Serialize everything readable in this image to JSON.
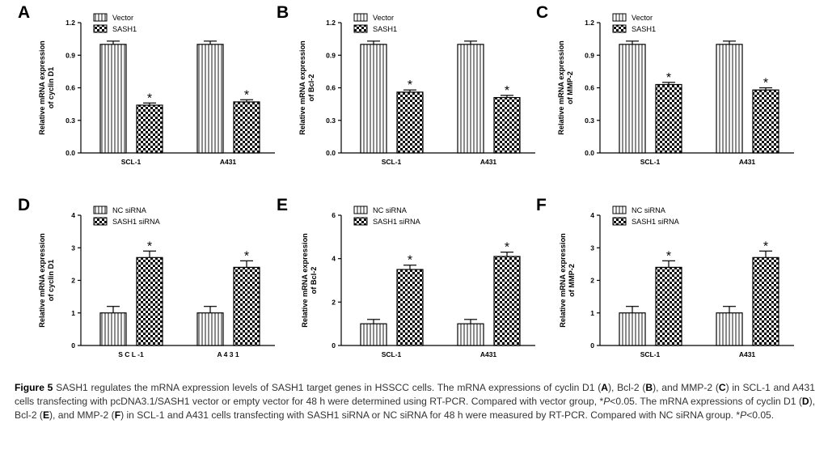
{
  "figure": {
    "colors": {
      "bar1": "#ffffff",
      "bar2": "#ffffff",
      "ink": "#000000"
    },
    "panels": [
      {
        "letter": "A",
        "ylabel": [
          "Relative mRNA expression",
          "of cyclin D1"
        ],
        "legend": [
          "Vector",
          "SASH1"
        ],
        "yticks": [
          "0.0",
          "0.3",
          "0.6",
          "0.9",
          "1.2"
        ],
        "categories": [
          "SCL-1",
          "A431"
        ]
      },
      {
        "letter": "B",
        "ylabel": [
          "Relative mRNA expression",
          "of Bcl-2"
        ],
        "legend": [
          "Vector",
          "SASH1"
        ],
        "yticks": [
          "0.0",
          "0.3",
          "0.6",
          "0.9",
          "1.2"
        ],
        "categories": [
          "SCL-1",
          "A431"
        ]
      },
      {
        "letter": "C",
        "ylabel": [
          "Relative mRNA expression",
          "of MMP-2"
        ],
        "legend": [
          "Vector",
          "SASH1"
        ],
        "yticks": [
          "0.0",
          "0.3",
          "0.6",
          "0.9",
          "1.2"
        ],
        "categories": [
          "SCL-1",
          "A431"
        ]
      },
      {
        "letter": "D",
        "ylabel": [
          "Relative mRNA expression",
          "of cyclin D1"
        ],
        "legend": [
          "NC siRNA",
          "SASH1 siRNA"
        ],
        "yticks": [
          "0",
          "1",
          "2",
          "3",
          "4"
        ],
        "categories": [
          "S C L -1",
          "A 4 3 1"
        ]
      },
      {
        "letter": "E",
        "ylabel": [
          "Relative mRNA expression",
          "of Bcl-2"
        ],
        "legend": [
          "NC siRNA",
          "SASH1 siRNA"
        ],
        "yticks": [
          "0",
          "2",
          "4",
          "6"
        ],
        "categories": [
          "SCL-1",
          "A431"
        ]
      },
      {
        "letter": "F",
        "ylabel": [
          "Relative mRNA expression",
          "of MMP-2"
        ],
        "legend": [
          "NC siRNA",
          "SASH1 siRNA"
        ],
        "yticks": [
          "0",
          "1",
          "2",
          "3",
          "4"
        ],
        "categories": [
          "SCL-1",
          "A431"
        ]
      }
    ]
  },
  "chart_data": [
    {
      "type": "bar",
      "panel": "A",
      "categories": [
        "SCL-1",
        "A431"
      ],
      "ylabel": "Relative mRNA expression of cyclin D1",
      "ylim": [
        0,
        1.2
      ],
      "series": [
        {
          "name": "Vector",
          "values": [
            1.0,
            1.0
          ],
          "errors": [
            0.03,
            0.03
          ]
        },
        {
          "name": "SASH1",
          "values": [
            0.44,
            0.47
          ],
          "errors": [
            0.02,
            0.02
          ],
          "significance": [
            "*",
            "*"
          ]
        }
      ]
    },
    {
      "type": "bar",
      "panel": "B",
      "categories": [
        "SCL-1",
        "A431"
      ],
      "ylabel": "Relative mRNA expression of Bcl-2",
      "ylim": [
        0,
        1.2
      ],
      "series": [
        {
          "name": "Vector",
          "values": [
            1.0,
            1.0
          ],
          "errors": [
            0.03,
            0.03
          ]
        },
        {
          "name": "SASH1",
          "values": [
            0.56,
            0.51
          ],
          "errors": [
            0.02,
            0.02
          ],
          "significance": [
            "*",
            "*"
          ]
        }
      ]
    },
    {
      "type": "bar",
      "panel": "C",
      "categories": [
        "SCL-1",
        "A431"
      ],
      "ylabel": "Relative mRNA expression of MMP-2",
      "ylim": [
        0,
        1.2
      ],
      "series": [
        {
          "name": "Vector",
          "values": [
            1.0,
            1.0
          ],
          "errors": [
            0.03,
            0.03
          ]
        },
        {
          "name": "SASH1",
          "values": [
            0.63,
            0.58
          ],
          "errors": [
            0.02,
            0.02
          ],
          "significance": [
            "*",
            "*"
          ]
        }
      ]
    },
    {
      "type": "bar",
      "panel": "D",
      "categories": [
        "S C L -1",
        "A 4 3 1"
      ],
      "ylabel": "Relative mRNA expression of cyclin D1",
      "ylim": [
        0,
        4
      ],
      "series": [
        {
          "name": "NC siRNA",
          "values": [
            1.0,
            1.0
          ],
          "errors": [
            0.2,
            0.2
          ]
        },
        {
          "name": "SASH1 siRNA",
          "values": [
            2.7,
            2.4
          ],
          "errors": [
            0.2,
            0.2
          ],
          "significance": [
            "*",
            "*"
          ]
        }
      ]
    },
    {
      "type": "bar",
      "panel": "E",
      "categories": [
        "SCL-1",
        "A431"
      ],
      "ylabel": "Relative mRNA expression of Bcl-2",
      "ylim": [
        0,
        6
      ],
      "series": [
        {
          "name": "NC siRNA",
          "values": [
            1.0,
            1.0
          ],
          "errors": [
            0.2,
            0.2
          ]
        },
        {
          "name": "SASH1 siRNA",
          "values": [
            3.5,
            4.1
          ],
          "errors": [
            0.2,
            0.2
          ],
          "significance": [
            "*",
            "*"
          ]
        }
      ]
    },
    {
      "type": "bar",
      "panel": "F",
      "categories": [
        "SCL-1",
        "A431"
      ],
      "ylabel": "Relative mRNA expression of MMP-2",
      "ylim": [
        0,
        4
      ],
      "series": [
        {
          "name": "NC siRNA",
          "values": [
            1.0,
            1.0
          ],
          "errors": [
            0.2,
            0.2
          ]
        },
        {
          "name": "SASH1 siRNA",
          "values": [
            2.4,
            2.7
          ],
          "errors": [
            0.2,
            0.2
          ],
          "significance": [
            "*",
            "*"
          ]
        }
      ]
    }
  ],
  "caption": {
    "label": "Figure 5",
    "text_1": " SASH1 regulates the mRNA expression levels of SASH1 target genes in HSSCC cells. The mRNA expressions of cyclin D1 (",
    "A": "A",
    "text_2": "), Bcl-2 (",
    "B": "B",
    "text_3": "), and MMP-2 (",
    "C": "C",
    "text_4": ") in SCL-1 and A431 cells transfecting with pcDNA3.1/SASH1 vector or empty vector for 48 h were determined using RT-PCR. Compared with vector group, *",
    "p1": "P",
    "text_5": "<0.05. The mRNA expressions of cyclin D1 (",
    "D": "D",
    "text_6": "), Bcl-2 (",
    "E": "E",
    "text_7": "), and MMP-2 (",
    "F": "F",
    "text_8": ") in SCL-1 and A431 cells transfecting with SASH1 siRNA or NC siRNA for 48 h were measured by RT-PCR. Compared with NC siRNA group. *",
    "p2": "P",
    "text_9": "<0.05."
  }
}
